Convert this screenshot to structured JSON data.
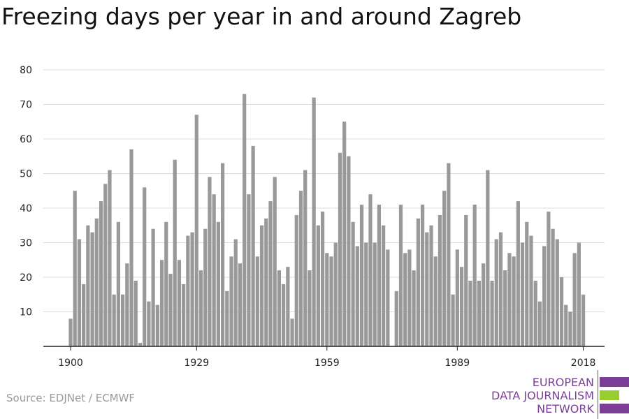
{
  "chart_data": {
    "type": "bar",
    "title": "Freezing days per year in and around Zagreb",
    "xlabel": "",
    "ylabel": "",
    "ylim": [
      0,
      80
    ],
    "y_ticks": [
      10,
      20,
      30,
      40,
      50,
      60,
      70,
      80
    ],
    "x_ticks": [
      1900,
      1929,
      1959,
      1989,
      2018
    ],
    "grid": true,
    "x": [
      1900,
      1901,
      1902,
      1903,
      1904,
      1905,
      1906,
      1907,
      1908,
      1909,
      1910,
      1911,
      1912,
      1913,
      1914,
      1915,
      1916,
      1917,
      1918,
      1919,
      1920,
      1921,
      1922,
      1923,
      1924,
      1925,
      1926,
      1927,
      1928,
      1929,
      1930,
      1931,
      1932,
      1933,
      1934,
      1935,
      1936,
      1937,
      1938,
      1939,
      1940,
      1941,
      1942,
      1943,
      1944,
      1945,
      1946,
      1947,
      1948,
      1949,
      1950,
      1951,
      1952,
      1953,
      1954,
      1955,
      1956,
      1957,
      1958,
      1959,
      1960,
      1961,
      1962,
      1963,
      1964,
      1965,
      1966,
      1967,
      1968,
      1969,
      1970,
      1971,
      1972,
      1973,
      1974,
      1975,
      1976,
      1977,
      1978,
      1979,
      1980,
      1981,
      1982,
      1983,
      1984,
      1985,
      1986,
      1987,
      1988,
      1989,
      1990,
      1991,
      1992,
      1993,
      1994,
      1995,
      1996,
      1997,
      1998,
      1999,
      2000,
      2001,
      2002,
      2003,
      2004,
      2005,
      2006,
      2007,
      2008,
      2009,
      2010,
      2011,
      2012,
      2013,
      2014,
      2015,
      2016,
      2017,
      2018
    ],
    "values": [
      8,
      45,
      31,
      18,
      35,
      33,
      37,
      42,
      47,
      51,
      15,
      36,
      15,
      24,
      57,
      19,
      1,
      46,
      13,
      34,
      12,
      25,
      36,
      21,
      54,
      25,
      18,
      32,
      33,
      67,
      22,
      34,
      49,
      44,
      36,
      53,
      16,
      26,
      31,
      24,
      73,
      44,
      58,
      26,
      35,
      37,
      42,
      49,
      22,
      18,
      23,
      8,
      38,
      45,
      51,
      22,
      72,
      35,
      39,
      27,
      26,
      30,
      56,
      65,
      55,
      36,
      29,
      41,
      30,
      44,
      30,
      41,
      35,
      28,
      0,
      16,
      41,
      27,
      28,
      22,
      37,
      41,
      33,
      35,
      26,
      38,
      45,
      53,
      15,
      28,
      23,
      38,
      19,
      41,
      19,
      24,
      51,
      19,
      31,
      33,
      22,
      27,
      26,
      42,
      30,
      36,
      32,
      19,
      13,
      29,
      39,
      34,
      31,
      20,
      12,
      10,
      27,
      30,
      15
    ],
    "color": "#999999"
  },
  "source": "Source: EDJNet / ECMWF",
  "logo": {
    "lines": [
      "EUROPEAN",
      "DATA JOURNALISM",
      "NETWORK"
    ],
    "colors": [
      "#7b3f97",
      "#9acd32",
      "#7b3f97"
    ]
  }
}
